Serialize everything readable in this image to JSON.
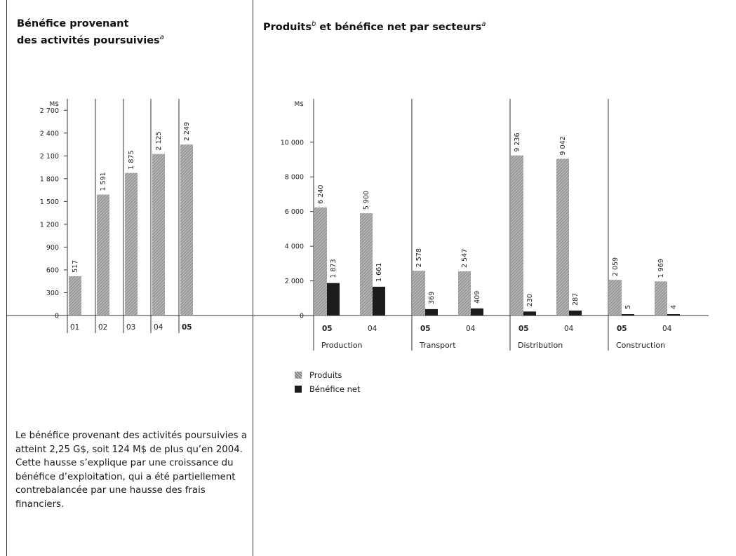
{
  "left": {
    "title_line1": "Bénéfice provenant",
    "title_line2": "des activités poursuivies",
    "title_sup": "a",
    "paragraph": "Le bénéfice provenant des activités poursuivies a atteint 2,25 G$, soit 124 M$ de plus qu’en 2004. Cette hausse s’explique par une croissance du bénéfice d’exploitation, qui a été partiellement contrebalancée par une hausse des frais financiers."
  },
  "right": {
    "title_main": "Produits",
    "title_sup1": "b",
    "title_rest": " et bénéfice net par secteurs",
    "title_sup2": "a"
  },
  "legend": {
    "items": [
      {
        "label": "Produits"
      },
      {
        "label": "Bénéfice net"
      }
    ]
  },
  "colors": {
    "hatch_fill": "#b4b4b4",
    "hatch_line": "#6e6e6e",
    "dark_fill": "#1c1c1c",
    "axis": "#333333"
  },
  "chart_data": [
    {
      "type": "bar",
      "unit_label": "M$",
      "categories": [
        "01",
        "02",
        "03",
        "04",
        "05"
      ],
      "bold_categories": [
        "05"
      ],
      "values": [
        517,
        1591,
        1875,
        2125,
        2249
      ],
      "value_labels": [
        "517",
        "1 591",
        "1 875",
        "2 125",
        "2 249"
      ],
      "ylim": [
        0,
        2700
      ],
      "yticks": [
        0,
        300,
        600,
        900,
        1200,
        1500,
        1800,
        2100,
        2400,
        2700
      ],
      "ytick_labels": [
        "0",
        "300",
        "600",
        "900",
        "1 200",
        "1 500",
        "1 800",
        "2 100",
        "2 400",
        "2 700"
      ]
    },
    {
      "type": "bar",
      "unit_label": "M$",
      "ylim": [
        0,
        11000
      ],
      "yticks": [
        0,
        2000,
        4000,
        6000,
        8000,
        10000
      ],
      "ytick_labels": [
        "0",
        "2 000",
        "4 000",
        "6 000",
        "8 000",
        "10 000"
      ],
      "series": [
        {
          "name": "Produits"
        },
        {
          "name": "Bénéfice net"
        }
      ],
      "groups": [
        {
          "name": "Production",
          "years": [
            {
              "year": "05",
              "bold": true,
              "produits": 6240,
              "produits_label": "6 240",
              "benefice": 1873,
              "benefice_label": "1 873"
            },
            {
              "year": "04",
              "bold": false,
              "produits": 5900,
              "produits_label": "5 900",
              "benefice": 1661,
              "benefice_label": "1 661"
            }
          ]
        },
        {
          "name": "Transport",
          "years": [
            {
              "year": "05",
              "bold": true,
              "produits": 2578,
              "produits_label": "2 578",
              "benefice": 369,
              "benefice_label": "369"
            },
            {
              "year": "04",
              "bold": false,
              "produits": 2547,
              "produits_label": "2 547",
              "benefice": 409,
              "benefice_label": "409"
            }
          ]
        },
        {
          "name": "Distribution",
          "years": [
            {
              "year": "05",
              "bold": true,
              "produits": 9236,
              "produits_label": "9 236",
              "benefice": 230,
              "benefice_label": "230"
            },
            {
              "year": "04",
              "bold": false,
              "produits": 9042,
              "produits_label": "9 042",
              "benefice": 287,
              "benefice_label": "287"
            }
          ]
        },
        {
          "name": "Construction",
          "years": [
            {
              "year": "05",
              "bold": true,
              "produits": 2059,
              "produits_label": "2 059",
              "benefice": 5,
              "benefice_label": "5"
            },
            {
              "year": "04",
              "bold": false,
              "produits": 1969,
              "produits_label": "1 969",
              "benefice": 4,
              "benefice_label": "4"
            }
          ]
        }
      ]
    }
  ]
}
